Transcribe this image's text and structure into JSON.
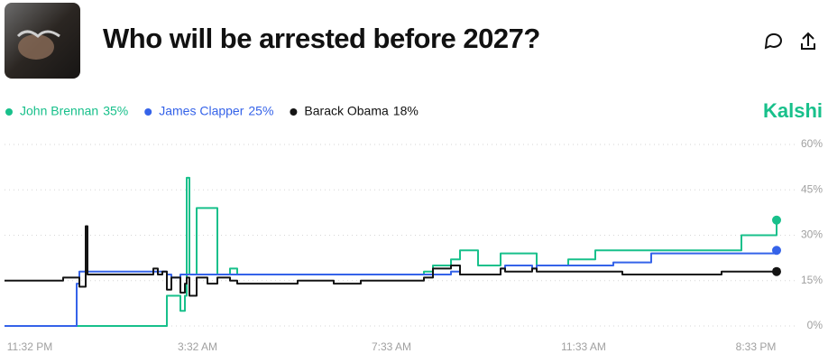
{
  "chart_data": {
    "type": "line",
    "step": true,
    "title": "Who will be arrested before 2027?",
    "brand": "Kalshi",
    "brand_color": "#18c08b",
    "x": [
      0,
      13,
      16,
      16.6,
      18,
      18.4,
      19,
      33,
      34,
      35,
      36,
      37,
      39,
      40,
      40.4,
      41,
      42.6,
      45,
      47.2,
      50,
      51.6,
      58,
      65,
      73,
      79,
      93,
      95,
      99,
      101,
      103,
      105,
      110,
      111,
      117,
      118,
      125,
      131,
      135,
      137,
      143.4,
      157,
      159,
      163.4,
      170.6,
      171.2
    ],
    "xlim": [
      0,
      175
    ],
    "xticks": [
      {
        "value": 5.6,
        "label": "11:32 PM"
      },
      {
        "value": 42.8,
        "label": "3:32 AM"
      },
      {
        "value": 85.8,
        "label": "7:33 AM"
      },
      {
        "value": 128.4,
        "label": "11:33 AM"
      },
      {
        "value": 166.6,
        "label": "8:33 PM"
      }
    ],
    "ylim": [
      0,
      60
    ],
    "yticks": [
      {
        "value": 0,
        "label": "0%"
      },
      {
        "value": 15,
        "label": "15%"
      },
      {
        "value": 30,
        "label": "30%"
      },
      {
        "value": 45,
        "label": "45%"
      },
      {
        "value": 60,
        "label": "60%"
      }
    ],
    "grid": true,
    "series": [
      {
        "name": "John Brennan",
        "current": "35%",
        "color": "#18c08b",
        "values": [
          0,
          0,
          0,
          0,
          0,
          0,
          0,
          0,
          0,
          0,
          10,
          10,
          5,
          10,
          49,
          17,
          39,
          39,
          17,
          19,
          17,
          17,
          17,
          17,
          17,
          18,
          20,
          22,
          25,
          25,
          20,
          24,
          24,
          24,
          20,
          22,
          25,
          25,
          25,
          25,
          25,
          25,
          30,
          30,
          35
        ]
      },
      {
        "name": "James Clapper",
        "current": "25%",
        "color": "#3563e9",
        "values": [
          0,
          0,
          14,
          18,
          18,
          18,
          18,
          18,
          18,
          18,
          17,
          16,
          17,
          17,
          17,
          17,
          17,
          17,
          17,
          17,
          17,
          17,
          17,
          17,
          17,
          17,
          17,
          18,
          17,
          17,
          17,
          19,
          20,
          19,
          20,
          20,
          20,
          21,
          21,
          24,
          24,
          24,
          24,
          24,
          25
        ]
      },
      {
        "name": "Barack Obama",
        "current": "18%",
        "color": "#141414",
        "values": [
          15,
          16,
          16,
          13,
          33,
          17,
          17,
          19,
          17,
          18,
          12,
          16,
          11,
          14,
          16,
          10,
          16,
          14,
          16,
          15,
          14,
          14,
          15,
          14,
          15,
          16,
          19,
          20,
          17,
          17,
          17,
          19,
          18,
          19,
          18,
          18,
          18,
          18,
          17,
          17,
          17,
          18,
          18,
          18,
          18
        ]
      }
    ]
  }
}
